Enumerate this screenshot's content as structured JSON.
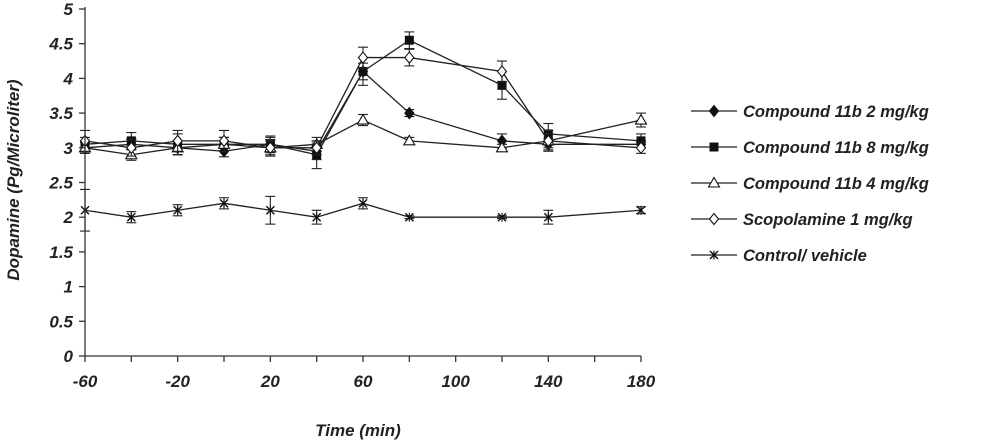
{
  "chart_data": {
    "type": "line",
    "xlabel": "Time (min)",
    "ylabel": "Dopamine (Pg/Microliter)",
    "xlim": [
      -60,
      180
    ],
    "ylim": [
      0,
      5
    ],
    "xticks": [
      -60,
      -20,
      20,
      60,
      100,
      140,
      180
    ],
    "yticks": [
      0,
      0.5,
      1,
      1.5,
      2,
      2.5,
      3,
      3.5,
      4,
      4.5,
      5
    ],
    "grid": false,
    "legend_position": "right",
    "x": [
      -60,
      -40,
      -20,
      0,
      20,
      40,
      60,
      80,
      120,
      140,
      180
    ],
    "series": [
      {
        "name": "Compound 11b 2 mg/kg",
        "marker": "diamond-filled",
        "values": [
          3.0,
          3.05,
          3.0,
          2.95,
          3.05,
          2.95,
          4.1,
          3.5,
          3.1,
          3.05,
          3.05
        ],
        "errors": [
          0.08,
          0.08,
          0.1,
          0.08,
          0.1,
          0.12,
          0.12,
          0.05,
          0.1,
          0.08,
          0.05
        ]
      },
      {
        "name": "Compound 11b 8 mg/kg",
        "marker": "square-filled",
        "values": [
          3.05,
          3.1,
          3.05,
          3.05,
          3.05,
          2.9,
          4.1,
          4.55,
          3.9,
          3.2,
          3.1
        ],
        "errors": [
          0.1,
          0.12,
          0.15,
          0.1,
          0.12,
          0.2,
          0.2,
          0.12,
          0.2,
          0.15,
          0.1
        ]
      },
      {
        "name": "Compound 11b 4 mg/kg",
        "marker": "triangle-open",
        "values": [
          3.0,
          2.9,
          3.0,
          3.05,
          3.0,
          3.05,
          3.4,
          3.1,
          3.0,
          3.1,
          3.4
        ],
        "errors": [
          0.08,
          0.08,
          0.1,
          0.1,
          0.1,
          0.1,
          0.08,
          0.05,
          0.05,
          0.1,
          0.1
        ]
      },
      {
        "name": "Scopolamine 1 mg/kg",
        "marker": "diamond-open",
        "values": [
          3.1,
          3.0,
          3.1,
          3.1,
          3.0,
          3.0,
          4.3,
          4.3,
          4.1,
          3.1,
          3.0
        ],
        "errors": [
          0.15,
          0.12,
          0.15,
          0.15,
          0.12,
          0.1,
          0.15,
          0.12,
          0.15,
          0.15,
          0.08
        ]
      },
      {
        "name": "Control/ vehicle",
        "marker": "star",
        "values": [
          2.1,
          2.0,
          2.1,
          2.2,
          2.1,
          2.0,
          2.2,
          2.0,
          2.0,
          2.0,
          2.1
        ],
        "errors": [
          0.3,
          0.08,
          0.08,
          0.08,
          0.2,
          0.1,
          0.08,
          0.02,
          0.02,
          0.1,
          0.05
        ]
      }
    ]
  }
}
